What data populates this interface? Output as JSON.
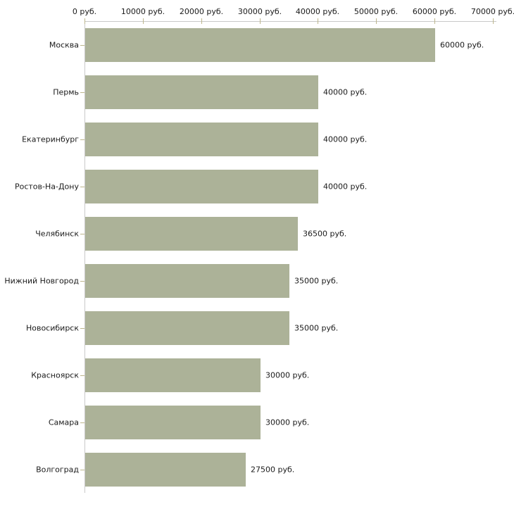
{
  "chart_data": {
    "type": "bar",
    "orientation": "horizontal",
    "title": "",
    "xlabel": "",
    "ylabel": "",
    "categories": [
      "Москва",
      "Пермь",
      "Екатеринбург",
      "Ростов-На-Дону",
      "Челябинск",
      "Нижний Новгород",
      "Новосибирск",
      "Красноярск",
      "Самара",
      "Волгоград"
    ],
    "values": [
      60000,
      40000,
      40000,
      40000,
      36500,
      35000,
      35000,
      30000,
      30000,
      27500
    ],
    "value_labels": [
      "60000 руб.",
      "40000 руб.",
      "40000 руб.",
      "40000 руб.",
      "36500 руб.",
      "35000 руб.",
      "35000 руб.",
      "30000 руб.",
      "30000 руб.",
      "27500 руб."
    ],
    "x_ticks": [
      0,
      10000,
      20000,
      30000,
      40000,
      50000,
      60000,
      70000
    ],
    "x_tick_labels": [
      "0 руб.",
      "10000 руб.",
      "20000 руб.",
      "30000 руб.",
      "40000 руб.",
      "50000 руб.",
      "60000 руб.",
      "70000 руб."
    ],
    "xlim": [
      0,
      70000
    ],
    "axis_position": "top",
    "grid": false,
    "legend": false,
    "colors": {
      "bar": "#acb298",
      "axis_line": "#c9c9c9",
      "tick": "#bdb68c",
      "text": "#1a1a1a",
      "background": "#ffffff"
    }
  }
}
